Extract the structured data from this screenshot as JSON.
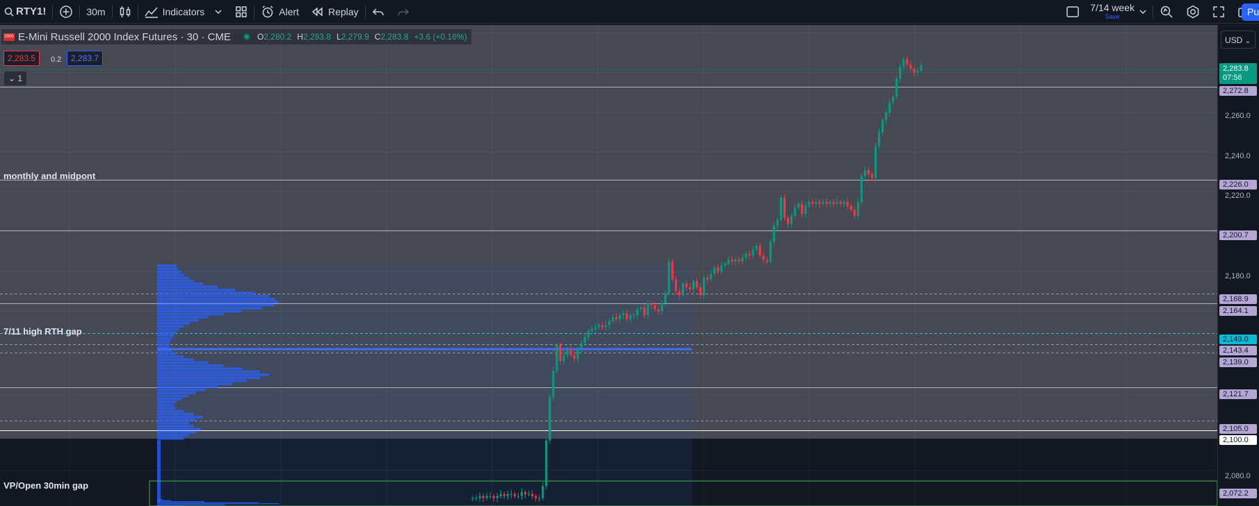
{
  "toolbar": {
    "symbol": "RTY1!",
    "interval": "30m",
    "indicators_label": "Indicators",
    "alert_label": "Alert",
    "replay_label": "Replay",
    "week_label": "7/14 week",
    "save_label": "Save",
    "publish_label": "Pu"
  },
  "legend": {
    "logo_text": "2000",
    "title": "E-Mini Russell 2000 Index Futures · 30 · CME",
    "o_label": "O",
    "o_value": "2,280.2",
    "h_label": "H",
    "h_value": "2,283.8",
    "l_label": "L",
    "l_value": "2,279.9",
    "c_label": "C",
    "c_value": "2,283.8",
    "change": "+3.6 (+0.16%)",
    "sell_price": "2,283.5",
    "spread": "0.2",
    "buy_price": "2,283.7",
    "collapse_label": "1"
  },
  "annotations": {
    "monthly": "monthly and midpont",
    "gap": "7/11 high RTH gap",
    "vp": "VP/Open 30min gap"
  },
  "axis": {
    "currency": "USD",
    "ticks": [
      "2,260.0",
      "2,240.0",
      "2,220.0",
      "2,180.0",
      "2,080.0"
    ],
    "current_price": "2,283.8",
    "countdown": "07:56",
    "levels": [
      "2,272.8",
      "2,226.0",
      "2,200.7",
      "2,168.9",
      "2,164.1",
      "2,149.0",
      "2,143.4",
      "2,139.0",
      "2,121.7",
      "2,105.0",
      "2,100.0",
      "2,072.2"
    ]
  },
  "colors": {
    "up": "#089981",
    "down": "#f23645",
    "level_solid": "#b2b5be",
    "level_dashed": "#9598a1",
    "volume_profile": "#2962ff",
    "label_purple": "#b4a7d6",
    "label_cyan": "#00bcd4"
  },
  "chart_data": {
    "type": "candlestick",
    "symbol": "RTY1!",
    "interval": "30",
    "ylim": [
      2062,
      2304
    ],
    "horizontal_levels": [
      {
        "price": 2272.8,
        "style": "solid"
      },
      {
        "price": 2226.0,
        "style": "solid"
      },
      {
        "price": 2200.7,
        "style": "solid"
      },
      {
        "price": 2168.9,
        "style": "dashed"
      },
      {
        "price": 2164.1,
        "style": "solid"
      },
      {
        "price": 2149.0,
        "style": "dashed"
      },
      {
        "price": 2143.4,
        "style": "dashed"
      },
      {
        "price": 2139.0,
        "style": "dashed"
      },
      {
        "price": 2121.7,
        "style": "solid"
      },
      {
        "price": 2105.0,
        "style": "dashed"
      },
      {
        "price": 2100.0,
        "style": "solid"
      }
    ],
    "gap_zone": [
      2068.5,
      2079.5
    ],
    "closes": [
      2066,
      2066,
      2067,
      2066,
      2067,
      2067,
      2066,
      2067,
      2068,
      2067,
      2068,
      2068,
      2067,
      2067,
      2069,
      2068,
      2068,
      2067,
      2066,
      2066,
      2072,
      2095,
      2117,
      2130,
      2143,
      2135,
      2138,
      2141,
      2138,
      2136,
      2141,
      2144,
      2147,
      2150,
      2151,
      2152,
      2153,
      2152,
      2153,
      2155,
      2157,
      2156,
      2158,
      2159,
      2156,
      2158,
      2158,
      2161,
      2162,
      2158,
      2164,
      2163,
      2161,
      2160,
      2164,
      2169,
      2185,
      2176,
      2170,
      2168,
      2174,
      2172,
      2171,
      2175,
      2172,
      2168,
      2177,
      2176,
      2179,
      2182,
      2180,
      2183,
      2184,
      2186,
      2185,
      2186,
      2185,
      2187,
      2189,
      2188,
      2191,
      2193,
      2188,
      2186,
      2185,
      2195,
      2203,
      2206,
      2217,
      2207,
      2204,
      2208,
      2212,
      2214,
      2209,
      2213,
      2215,
      2214,
      2215,
      2214,
      2215,
      2214,
      2215,
      2214,
      2215,
      2214,
      2215,
      2213,
      2211,
      2208,
      2215,
      2228,
      2231,
      2229,
      2227,
      2243,
      2250,
      2256,
      2260,
      2265,
      2268,
      2277,
      2283,
      2287,
      2284,
      2282,
      2280,
      2281,
      2283.8
    ],
    "volume_profile_upper": [
      0.16,
      0.17,
      0.2,
      0.22,
      0.26,
      0.3,
      0.38,
      0.5,
      0.64,
      0.8,
      0.92,
      0.97,
      1.0,
      0.96,
      0.86,
      0.7,
      0.55,
      0.42,
      0.34,
      0.27,
      0.22,
      0.18,
      0.16,
      0.14,
      0.12,
      0.11,
      0.1,
      0.1,
      0.12,
      0.16,
      0.22,
      0.3,
      0.42,
      0.55,
      0.7,
      0.84,
      0.92,
      0.85,
      0.74,
      0.62,
      0.5,
      0.4,
      0.32,
      0.26,
      0.2,
      0.16,
      0.14,
      0.15,
      0.22,
      0.3,
      0.38,
      0.32,
      0.26,
      0.3,
      0.36,
      0.32,
      0.26,
      0.22
    ],
    "volume_profile_lower": [
      0.04,
      0.1,
      0.35,
      0.75,
      0.9,
      0.5,
      0.2
    ]
  }
}
